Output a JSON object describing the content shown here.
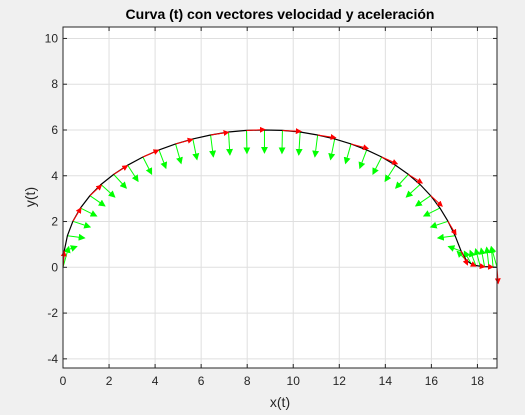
{
  "chart_data": {
    "type": "line",
    "title": "Curva (t) con vectores velocidad y aceleración",
    "xlabel": "x(t)",
    "ylabel": "y(t)",
    "xlim": [
      0,
      18.85
    ],
    "ylim": [
      -4.4,
      10.5
    ],
    "xticks": [
      0,
      2,
      4,
      6,
      8,
      10,
      12,
      14,
      16,
      18
    ],
    "yticks": [
      -4,
      -2,
      0,
      2,
      4,
      6,
      8,
      10
    ],
    "grid": true,
    "curve_color": "#000000",
    "velocity_color": "#ff0000",
    "acceleration_color": "#00ff00",
    "series": [
      {
        "kind": "curve",
        "x": [
          0.0,
          0.05,
          0.19,
          0.43,
          0.76,
          1.17,
          1.65,
          2.2,
          2.81,
          3.47,
          4.17,
          4.89,
          5.64,
          6.41,
          7.19,
          7.97,
          8.75,
          9.53,
          10.3,
          11.06,
          11.8,
          12.51,
          13.19,
          13.84,
          14.44,
          15.0,
          15.51,
          15.97,
          16.37,
          16.72,
          17.03,
          17.29,
          17.52,
          17.73,
          17.93,
          18.12,
          18.31,
          18.5,
          18.68,
          18.85
        ],
        "y": [
          0.0,
          0.71,
          1.38,
          2.01,
          2.59,
          3.13,
          3.62,
          4.06,
          4.46,
          4.82,
          5.13,
          5.39,
          5.61,
          5.78,
          5.91,
          5.98,
          6.0,
          5.98,
          5.91,
          5.78,
          5.61,
          5.39,
          5.13,
          4.82,
          4.46,
          4.06,
          3.62,
          3.13,
          2.59,
          2.01,
          1.38,
          0.71,
          0.3,
          0.15,
          0.08,
          0.05,
          0.03,
          0.02,
          0.01,
          0.0
        ]
      },
      {
        "kind": "velocity-vectors",
        "x": [
          0.0,
          0.43,
          1.17,
          2.2,
          3.47,
          4.89,
          6.41,
          7.97,
          9.53,
          11.06,
          12.51,
          13.84,
          15.0,
          15.97,
          16.72,
          17.29,
          17.73,
          18.12,
          18.5,
          18.85
        ],
        "y": [
          0.0,
          2.01,
          3.13,
          4.06,
          4.82,
          5.39,
          5.78,
          5.98,
          5.98,
          5.78,
          5.39,
          4.82,
          4.06,
          3.13,
          2.01,
          0.71,
          0.15,
          0.05,
          0.02,
          0.0
        ],
        "dx": [
          0.05,
          0.35,
          0.5,
          0.6,
          0.68,
          0.74,
          0.78,
          0.8,
          0.8,
          0.78,
          0.74,
          0.68,
          0.6,
          0.5,
          0.35,
          0.28,
          0.2,
          0.2,
          0.18,
          0.05
        ],
        "dy": [
          0.7,
          0.58,
          0.46,
          0.38,
          0.3,
          0.2,
          0.12,
          0.04,
          -0.04,
          -0.12,
          -0.2,
          -0.3,
          -0.38,
          -0.46,
          -0.58,
          -0.6,
          -0.1,
          -0.03,
          -0.01,
          -0.7
        ]
      },
      {
        "kind": "acceleration-vectors",
        "x": [
          0.0,
          0.05,
          0.19,
          0.43,
          0.76,
          1.17,
          1.65,
          2.2,
          2.81,
          3.47,
          4.17,
          4.89,
          5.64,
          6.41,
          7.19,
          7.97,
          8.75,
          9.53,
          10.3,
          11.06,
          11.8,
          12.51,
          13.19,
          13.84,
          14.44,
          15.0,
          15.51,
          15.97,
          16.37,
          16.72,
          17.03,
          17.29,
          17.52,
          17.73,
          17.93,
          18.12,
          18.31,
          18.5,
          18.68,
          18.85
        ],
        "y": [
          0.0,
          0.71,
          1.38,
          2.01,
          2.59,
          3.13,
          3.62,
          4.06,
          4.46,
          4.82,
          5.13,
          5.39,
          5.61,
          5.78,
          5.91,
          5.98,
          6.0,
          5.98,
          5.91,
          5.78,
          5.61,
          5.39,
          5.13,
          4.82,
          4.46,
          4.06,
          3.62,
          3.13,
          2.59,
          2.01,
          1.38,
          0.71,
          0.3,
          0.15,
          0.08,
          0.05,
          0.03,
          0.02,
          0.01,
          0.0
        ],
        "dx": [
          0.25,
          0.55,
          0.75,
          0.75,
          0.7,
          0.65,
          0.6,
          0.55,
          0.45,
          0.38,
          0.3,
          0.24,
          0.18,
          0.12,
          0.06,
          0.02,
          0.0,
          -0.02,
          -0.06,
          -0.12,
          -0.18,
          -0.24,
          -0.3,
          -0.38,
          -0.45,
          -0.55,
          -0.6,
          -0.65,
          -0.7,
          -0.75,
          -0.75,
          -0.55,
          -0.4,
          -0.3,
          -0.25,
          -0.2,
          -0.15,
          -0.1,
          -0.08,
          -0.25
        ],
        "dy": [
          0.9,
          0.2,
          -0.1,
          -0.25,
          -0.35,
          -0.45,
          -0.55,
          -0.6,
          -0.7,
          -0.75,
          -0.8,
          -0.85,
          -0.9,
          -0.95,
          -1.0,
          -1.0,
          -1.0,
          -1.0,
          -1.0,
          -0.95,
          -0.9,
          -0.85,
          -0.8,
          -0.75,
          -0.7,
          -0.6,
          -0.55,
          -0.45,
          -0.35,
          -0.25,
          -0.1,
          0.2,
          0.4,
          0.55,
          0.65,
          0.75,
          0.8,
          0.85,
          0.88,
          0.9
        ]
      }
    ]
  }
}
